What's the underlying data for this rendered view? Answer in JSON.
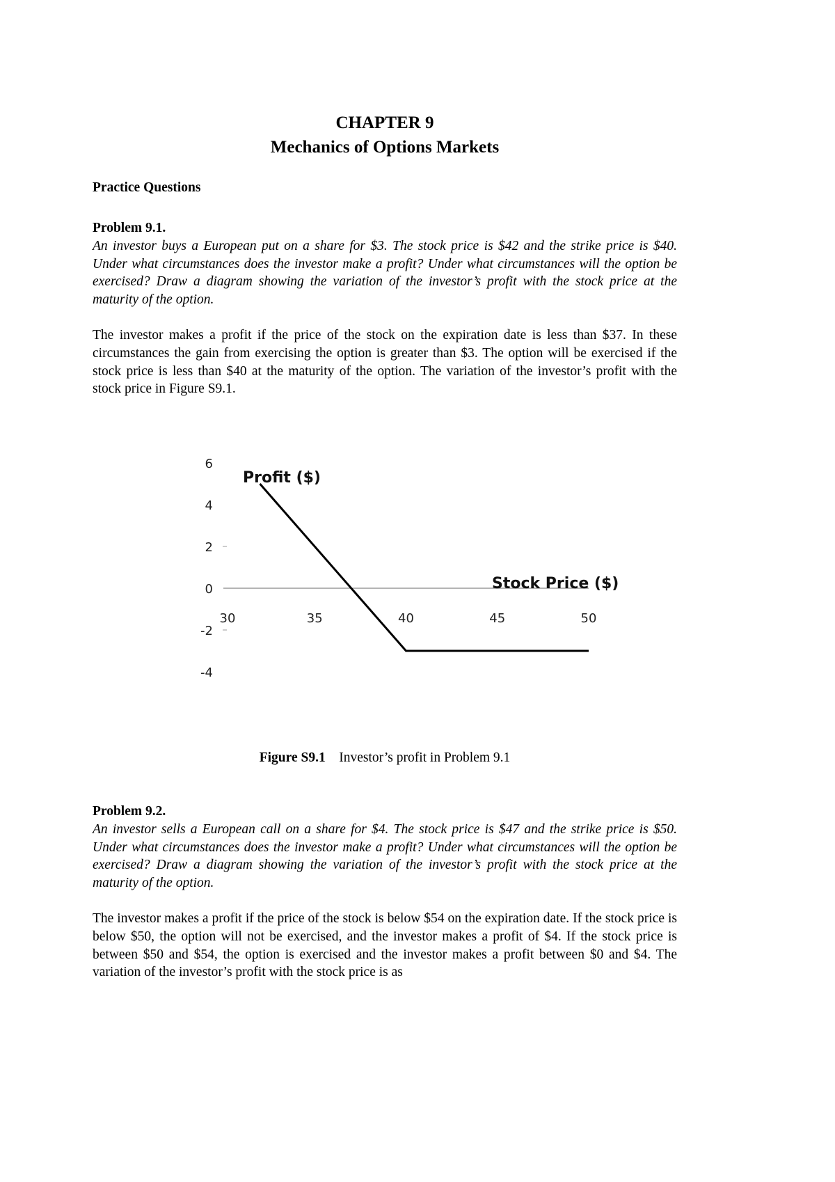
{
  "header": {
    "chapter": "CHAPTER 9",
    "title": "Mechanics of Options Markets"
  },
  "section": "Practice Questions",
  "problems": [
    {
      "label": "Problem 9.1.",
      "question": "An investor buys a European put on a share for $3. The stock price is $42 and the strike price is $40. Under what circumstances does the investor make a profit? Under what circumstances will the option be exercised? Draw a diagram showing the variation of the investor’s profit with the stock price at the maturity of the option.",
      "answer": "The investor makes a profit if the price of the stock on the expiration date is less than $37. In these circumstances the gain from exercising the option is greater than $3. The option will be exercised if the stock price is less than $40 at the maturity of the option. The variation of the investor’s profit with the stock price in Figure S9.1."
    },
    {
      "label": "Problem 9.2.",
      "question": "An investor sells a European call on a share for $4. The stock price is $47 and the strike price is $50. Under what circumstances does the investor make a profit? Under what circumstances will the option be exercised? Draw a diagram showing the variation of the investor’s profit with the stock price at the maturity of the option.",
      "answer": "The investor makes a profit if the price of the stock is below $54 on the expiration date. If the stock price is below $50, the option will not be exercised, and the investor makes a profit of $4. If the stock price is between $50 and $54, the option is exercised and the investor makes a profit between $0 and $4. The variation of the investor’s profit with the stock price is as"
    }
  ],
  "figure": {
    "label": "Figure S9.1",
    "caption": "Investor’s profit in Problem 9.1"
  },
  "chart_data": {
    "type": "line",
    "ylabel": "Profit ($)",
    "xlabel": "Stock Price ($)",
    "xlim": [
      30,
      50
    ],
    "ylim": [
      -4,
      6
    ],
    "x_ticks": [
      "30",
      "35",
      "40",
      "45",
      "50"
    ],
    "y_ticks": [
      "6",
      "4",
      "2",
      "0",
      "-2",
      "-4"
    ],
    "series": [
      {
        "x": [
          32,
          40,
          50
        ],
        "y": [
          5,
          -3,
          -3
        ],
        "color": "#000000"
      }
    ],
    "grid": false
  }
}
